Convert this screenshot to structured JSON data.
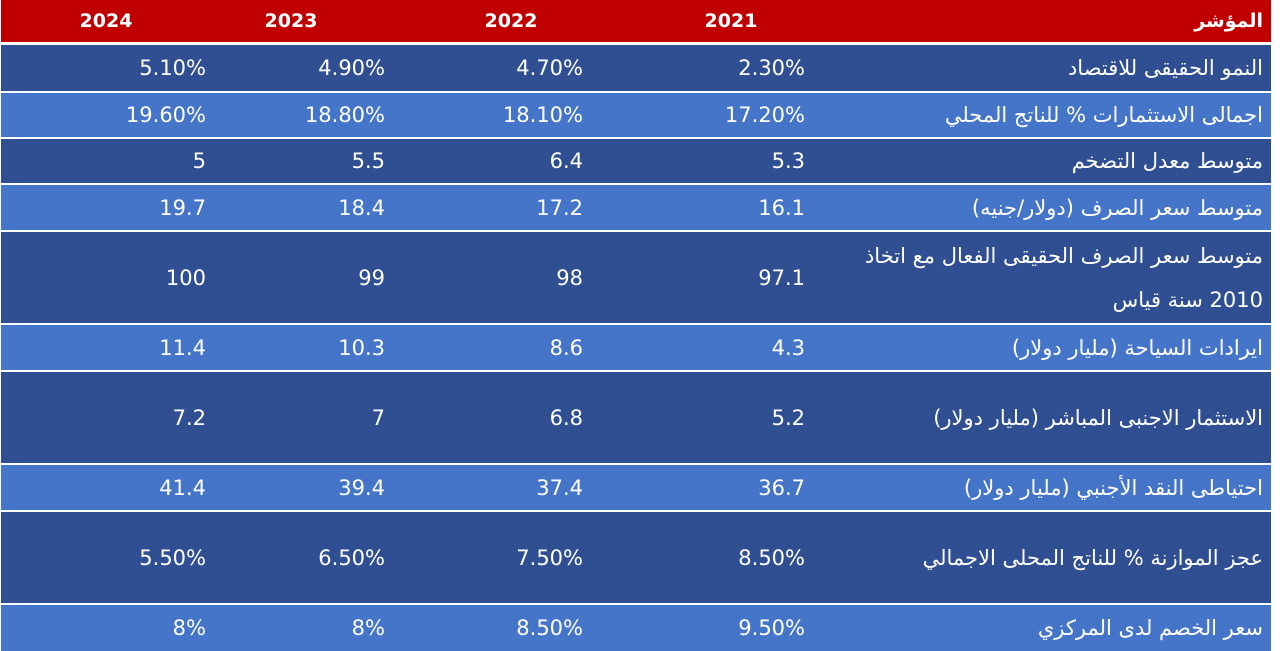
{
  "header": {
    "indicator": "المؤشر",
    "y2021": "2021",
    "y2022": "2022",
    "y2023": "2023",
    "y2024": "2024"
  },
  "rows": [
    {
      "indicator": "النمو الحقيقى للاقتصاد",
      "y2021": "2.30%",
      "y2022": "4.70%",
      "y2023": "4.90%",
      "y2024": "5.10%"
    },
    {
      "indicator": "اجمالى الاستثمارات % للناتج المحلي",
      "y2021": "17.20%",
      "y2022": "18.10%",
      "y2023": "18.80%",
      "y2024": "19.60%"
    },
    {
      "indicator": "متوسط معدل التضخم",
      "y2021": "5.3",
      "y2022": "6.4",
      "y2023": "5.5",
      "y2024": "5"
    },
    {
      "indicator": "متوسط سعر الصرف (دولار/جنيه)",
      "y2021": "16.1",
      "y2022": "17.2",
      "y2023": "18.4",
      "y2024": "19.7"
    },
    {
      "indicator": "متوسط سعر الصرف الحقيقى الفعال مع اتخاذ 2010 سنة قياس",
      "y2021": "97.1",
      "y2022": "98",
      "y2023": "99",
      "y2024": "100"
    },
    {
      "indicator": "ايرادات السياحة (مليار دولار)",
      "y2021": "4.3",
      "y2022": "8.6",
      "y2023": "10.3",
      "y2024": "11.4"
    },
    {
      "indicator": "الاستثمار الاجنبى المباشر (مليار دولار)",
      "y2021": "5.2",
      "y2022": "6.8",
      "y2023": "7",
      "y2024": "7.2"
    },
    {
      "indicator": "احتياطى النقد الأجنبي (مليار دولار)",
      "y2021": "36.7",
      "y2022": "37.4",
      "y2023": "39.4",
      "y2024": "41.4"
    },
    {
      "indicator": "عجز الموازنة % للناتج المحلى الاجمالي",
      "y2021": "8.50%",
      "y2022": "7.50%",
      "y2023": "6.50%",
      "y2024": "5.50%"
    },
    {
      "indicator": "سعر الخصم لدى المركزي",
      "y2021": "9.50%",
      "y2022": "8.50%",
      "y2023": "8%",
      "y2024": "8%"
    }
  ]
}
